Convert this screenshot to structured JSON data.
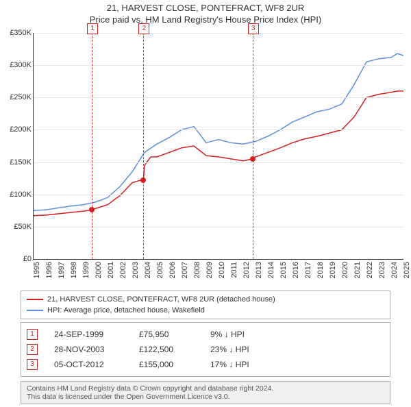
{
  "title_line1": "21, HARVEST CLOSE, PONTEFRACT, WF8 2UR",
  "title_line2": "Price paid vs. HM Land Registry's House Price Index (HPI)",
  "chart": {
    "type": "line",
    "background_color": "#ffffff",
    "grid_color": "#e5e5e5",
    "axis_color": "#333333",
    "y_axis": {
      "min": 0,
      "max": 350000,
      "tick_step": 50000,
      "ticks": [
        0,
        50000,
        100000,
        150000,
        200000,
        250000,
        300000,
        350000
      ],
      "tick_labels": [
        "£0",
        "£50K",
        "£100K",
        "£150K",
        "£200K",
        "£250K",
        "£300K",
        "£350K"
      ],
      "label_fontsize": 11
    },
    "x_axis": {
      "min": 1995,
      "max": 2025,
      "tick_step": 1,
      "ticks": [
        1995,
        1996,
        1997,
        1998,
        1999,
        2000,
        2001,
        2002,
        2003,
        2004,
        2005,
        2006,
        2007,
        2008,
        2009,
        2010,
        2011,
        2012,
        2013,
        2014,
        2015,
        2016,
        2017,
        2018,
        2019,
        2020,
        2021,
        2022,
        2023,
        2024,
        2025
      ],
      "label_fontsize": 11,
      "label_rotation": -90
    },
    "series": [
      {
        "name": "price_paid",
        "label": "21, HARVEST CLOSE, PONTEFRACT, WF8 2UR (detached house)",
        "color": "#d02020",
        "line_width": 1.5,
        "data_x": [
          1995,
          1996,
          1997,
          1998,
          1999,
          1999.73,
          2000,
          2001,
          2002,
          2003,
          2003.5,
          2003.91,
          2004,
          2004.5,
          2005,
          2006,
          2007,
          2008,
          2009,
          2010,
          2011,
          2012,
          2012.76,
          2013,
          2014,
          2015,
          2016,
          2017,
          2018,
          2019,
          2020,
          2021,
          2022,
          2023,
          2024,
          2024.5,
          2025
        ],
        "data_y": [
          67000,
          68000,
          70000,
          72000,
          74000,
          75950,
          78000,
          84000,
          98000,
          118000,
          121000,
          122500,
          145000,
          158000,
          158000,
          165000,
          172000,
          175000,
          160000,
          158000,
          155000,
          152000,
          155000,
          158000,
          165000,
          172000,
          180000,
          186000,
          190000,
          195000,
          200000,
          220000,
          250000,
          255000,
          258000,
          260000,
          260000
        ]
      },
      {
        "name": "hpi",
        "label": "HPI: Average price, detached house, Wakefield",
        "color": "#5b8fd6",
        "line_width": 1.5,
        "data_x": [
          1995,
          1996,
          1997,
          1998,
          1999,
          2000,
          2001,
          2002,
          2003,
          2004,
          2005,
          2006,
          2007,
          2008,
          2009,
          2010,
          2011,
          2012,
          2013,
          2014,
          2015,
          2016,
          2017,
          2018,
          2019,
          2020,
          2021,
          2022,
          2023,
          2024,
          2024.5,
          2025
        ],
        "data_y": [
          75000,
          76000,
          79000,
          82000,
          84000,
          88000,
          95000,
          112000,
          135000,
          165000,
          178000,
          188000,
          200000,
          205000,
          180000,
          185000,
          180000,
          178000,
          182000,
          190000,
          200000,
          212000,
          220000,
          228000,
          232000,
          240000,
          270000,
          305000,
          310000,
          312000,
          318000,
          315000
        ]
      }
    ],
    "reference_lines": [
      {
        "index": "1",
        "x": 1999.73,
        "color": "#e03030",
        "dash": "dashed"
      },
      {
        "index": "2",
        "x": 2003.91,
        "color": "#e03030",
        "dash": "dashed"
      },
      {
        "index": "3",
        "x": 2012.76,
        "color": "#e03030",
        "dash": "dashed"
      }
    ],
    "sale_markers": [
      {
        "x": 1999.73,
        "y": 75950,
        "color": "#d02020",
        "radius": 4
      },
      {
        "x": 2003.91,
        "y": 122500,
        "color": "#d02020",
        "radius": 4
      },
      {
        "x": 2012.76,
        "y": 155000,
        "color": "#d02020",
        "radius": 4
      }
    ]
  },
  "legend": {
    "items": [
      {
        "color": "#d02020",
        "label": "21, HARVEST CLOSE, PONTEFRACT, WF8 2UR (detached house)"
      },
      {
        "color": "#5b8fd6",
        "label": "HPI: Average price, detached house, Wakefield"
      }
    ]
  },
  "sales_table": {
    "rows": [
      {
        "index": "1",
        "date": "24-SEP-1999",
        "price": "£75,950",
        "delta": "9% ↓ HPI"
      },
      {
        "index": "2",
        "date": "28-NOV-2003",
        "price": "£122,500",
        "delta": "23% ↓ HPI"
      },
      {
        "index": "3",
        "date": "05-OCT-2012",
        "price": "£155,000",
        "delta": "17% ↓ HPI"
      }
    ],
    "badge_border_color": "#d02020",
    "badge_text_color": "#d02020"
  },
  "footer": {
    "line1": "Contains HM Land Registry data © Crown copyright and database right 2024.",
    "line2": "This data is licensed under the Open Government Licence v3.0.",
    "background_color": "#f0f0f0"
  }
}
